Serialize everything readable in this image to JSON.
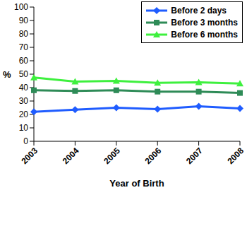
{
  "chart_data": {
    "type": "line",
    "categories": [
      "2003",
      "2004",
      "2005",
      "2006",
      "2007",
      "2008"
    ],
    "x_label": "Year of Birth",
    "y_label": "%",
    "ylim": [
      0,
      100
    ],
    "yticks": [
      0,
      10,
      20,
      30,
      40,
      50,
      60,
      70,
      80,
      90,
      100
    ],
    "grid": false,
    "legend": "upper right",
    "series": [
      {
        "name": "Before 2 days",
        "color": "#1f5cff",
        "marker": "diamond",
        "values": [
          22,
          23.5,
          25,
          24,
          26,
          24.5
        ]
      },
      {
        "name": "Before 3 months",
        "color": "#2e8b57",
        "marker": "square",
        "values": [
          38,
          37.5,
          38,
          37,
          37,
          36
        ]
      },
      {
        "name": "Before 6 months",
        "color": "#3ef03e",
        "marker": "triangle",
        "values": [
          47.5,
          44.5,
          45,
          43.5,
          44,
          43
        ]
      }
    ]
  }
}
